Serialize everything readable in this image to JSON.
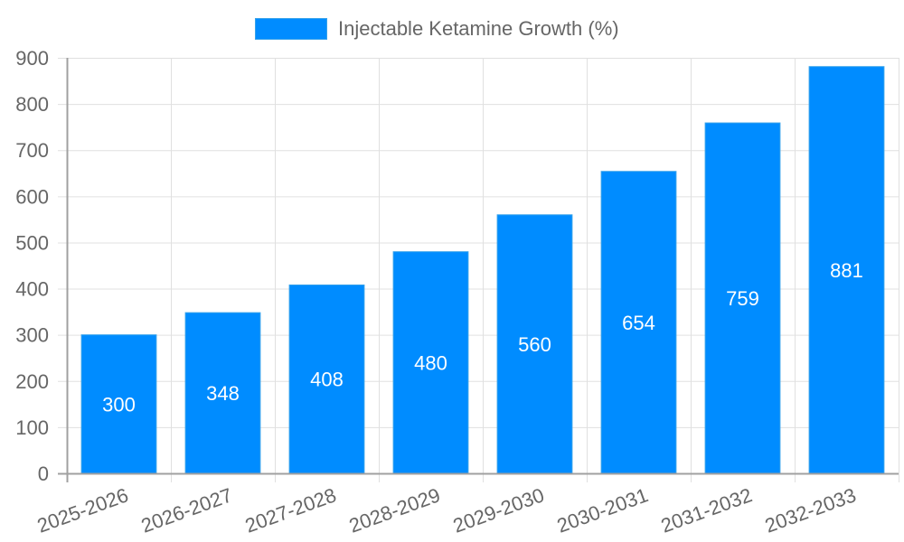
{
  "chart_data": {
    "type": "bar",
    "title": "",
    "legend": [
      {
        "label": "Injectable Ketamine Growth (%)",
        "color": "#008cff"
      }
    ],
    "legend_position": "top",
    "categories": [
      "2025-2026",
      "2026-2027",
      "2027-2028",
      "2028-2029",
      "2029-2030",
      "2030-2031",
      "2031-2032",
      "2032-2033"
    ],
    "series": [
      {
        "name": "Injectable Ketamine Growth (%)",
        "values": [
          300,
          348,
          408,
          480,
          560,
          654,
          759,
          881
        ],
        "color": "#008cff"
      }
    ],
    "xlabel": "",
    "ylabel": "",
    "ylim": [
      0,
      900
    ],
    "yticks": [
      0,
      100,
      200,
      300,
      400,
      500,
      600,
      700,
      800,
      900
    ],
    "grid": true,
    "data_labels": true,
    "x_label_rotation": -20
  },
  "legend": {
    "label": "Injectable Ketamine Growth (%)",
    "color": "#008cff"
  },
  "colors": {
    "bar": "#008cff",
    "bar_border": "#36a2eb",
    "grid": "#e0e0e0",
    "axis": "#a0a0a0",
    "tick_text": "#666666",
    "data_label": "#ffffff"
  }
}
